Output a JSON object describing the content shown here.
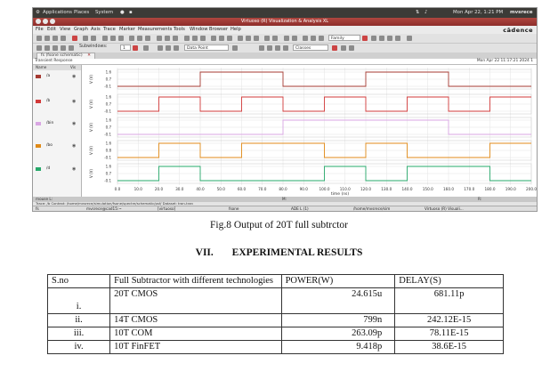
{
  "figure": {
    "topbar": {
      "applications": "Applications",
      "places": "Places",
      "system": "System",
      "datetime": "Mon Apr 22,  1:21 PM",
      "user": "mvsrece"
    },
    "window_title": "Virtuoso (R) Visualization & Analysis XL",
    "menu": [
      "File",
      "Edit",
      "View",
      "Graph",
      "Axis",
      "Trace",
      "Marker",
      "Measurements",
      "Tools",
      "Window",
      "Browser",
      "Help"
    ],
    "brand": "cādence",
    "toolbar": {
      "subwindows_label": "Subwindows:",
      "subwindows_value": "1",
      "family_label": "Family",
      "datapoint_label": "Data Point",
      "classes_label": "Classes"
    },
    "tab_label": "fs (fsone schematic)",
    "graph_title": "Transient Response",
    "graph_date": "Mon Apr 22 11:17:21 2024  1",
    "panel_header": {
      "name": "Name",
      "vis": "Vis"
    },
    "signals": [
      {
        "name": "/a",
        "color": "#a53a32"
      },
      {
        "name": "/b",
        "color": "#d23a3a"
      },
      {
        "name": "/bin",
        "color": "#d9a6e3"
      },
      {
        "name": "/bo",
        "color": "#e08a18"
      },
      {
        "name": "/d",
        "color": "#26a86a"
      }
    ],
    "waveforms": [
      {
        "name": "/a",
        "color": "#a53a32",
        "ticks": [
          "1.6",
          "0.7",
          "-0.1"
        ],
        "transitions": [
          40,
          80,
          120,
          160
        ]
      },
      {
        "name": "/b",
        "color": "#d23a3a",
        "ticks": [
          "1.6",
          "0.7",
          "-0.1"
        ],
        "transitions": [
          20,
          40,
          60,
          80,
          100,
          120,
          140,
          160,
          180
        ]
      },
      {
        "name": "/bin",
        "color": "#d9a6e3",
        "ticks": [
          "1.6",
          "0.7",
          "-0.1"
        ],
        "transitions": [
          80,
          160
        ]
      },
      {
        "name": "/bo",
        "color": "#e08a18",
        "ticks": [
          "1.6",
          "0.8",
          "-0.1"
        ],
        "transitions": [
          20,
          40,
          60,
          100,
          120,
          140,
          180
        ]
      },
      {
        "name": "/d",
        "color": "#26a86a",
        "ticks": [
          "1.6",
          "0.7",
          "-0.1"
        ],
        "transitions": [
          20,
          40,
          100,
          120,
          140,
          180
        ]
      }
    ],
    "x_ticks": [
      "0.0",
      "10.0",
      "20.0",
      "30.0",
      "40.0",
      "50.0",
      "60.0",
      "70.0",
      "80.0",
      "90.0",
      "100.0",
      "110.0",
      "120.0",
      "130.0",
      "140.0",
      "150.0",
      "160.0",
      "170.0",
      "180.0",
      "190.0",
      "200.0"
    ],
    "x_label": "time (ns)",
    "y_label": "V (V)",
    "status": {
      "left": "mouse L:",
      "mid": "M:",
      "right": "R:",
      "line": "Trace: /b  Context: /home/mvsrece/simulation/fsone/spectre/schematic/psf/ Dataset: tran-tran"
    },
    "taskbar": [
      "fs",
      "mvsrece@cad15:~",
      "[virtuoso]",
      "fsone",
      "ADE L (1)",
      "/home/mvsrece/sim",
      "Virtuoso (R) Visuali..."
    ]
  },
  "caption": "Fig.8 Output of 20T full subtrctor",
  "section": {
    "number": "VII.",
    "title": "EXPERIMENTAL RESULTS"
  },
  "table": {
    "headers": [
      "S.no",
      "Full Subtractor with different technologies",
      "POWER(W)",
      "DELAY(S)"
    ],
    "rows": [
      {
        "sno": "i.",
        "tech": "20T CMOS",
        "power": "24.615u",
        "delay": "681.11p"
      },
      {
        "sno": "ii.",
        "tech": "14T CMOS",
        "power": "799n",
        "delay": "242.12E-15"
      },
      {
        "sno": "iii.",
        "tech": "10T COM",
        "power": "263.09p",
        "delay": "78.11E-15"
      },
      {
        "sno": "iv.",
        "tech": "10T FinFET",
        "power": "9.418p",
        "delay": "38.6E-15"
      }
    ]
  }
}
